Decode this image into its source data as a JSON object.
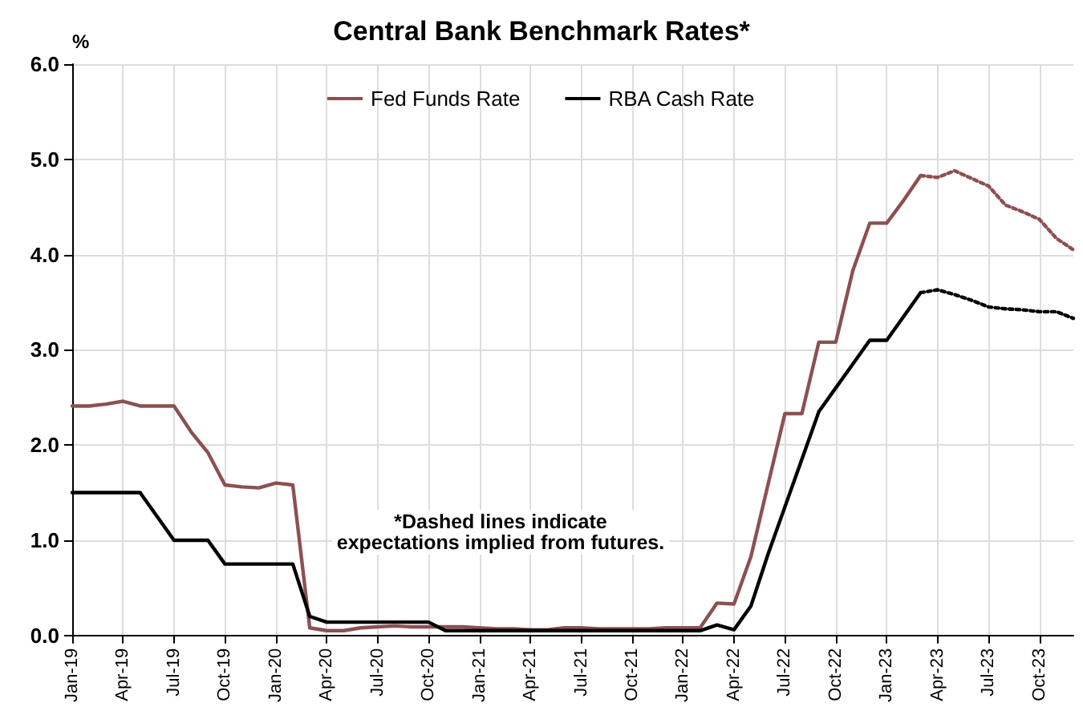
{
  "chart_data": {
    "type": "line",
    "title": "Central Bank Benchmark Rates*",
    "ylabel": "%",
    "categories": [
      "Jan-19",
      null,
      null,
      "Apr-19",
      null,
      null,
      "Jul-19",
      null,
      null,
      "Oct-19",
      null,
      null,
      "Jan-20",
      null,
      null,
      "Apr-20",
      null,
      null,
      "Jul-20",
      null,
      null,
      "Oct-20",
      null,
      null,
      "Jan-21",
      null,
      null,
      "Apr-21",
      null,
      null,
      "Jul-21",
      null,
      null,
      "Oct-21",
      null,
      null,
      "Jan-22",
      null,
      null,
      "Apr-22",
      null,
      null,
      "Jul-22",
      null,
      null,
      "Oct-22",
      null,
      null,
      "Jan-23",
      null,
      null,
      "Apr-23",
      null,
      null,
      "Jul-23",
      null,
      null,
      "Oct-23",
      null,
      null
    ],
    "series": [
      {
        "name": "Fed Funds Rate",
        "color": "#8c5050",
        "line_style": "solid",
        "values": [
          2.41,
          2.41,
          2.43,
          2.46,
          2.41,
          2.41,
          2.41,
          2.14,
          1.92,
          1.58,
          1.56,
          1.55,
          1.6,
          1.58,
          0.08,
          0.05,
          0.05,
          0.08,
          0.09,
          0.1,
          0.09,
          0.09,
          0.09,
          0.09,
          0.08,
          0.07,
          0.07,
          0.06,
          0.06,
          0.08,
          0.08,
          0.07,
          0.07,
          0.07,
          0.07,
          0.08,
          0.08,
          0.08,
          0.34,
          0.33,
          0.83,
          1.58,
          2.33,
          2.33,
          3.08,
          3.08,
          3.83,
          4.33,
          4.33,
          4.57,
          4.83,
          null,
          null,
          null,
          null,
          null,
          null,
          null,
          null,
          null
        ]
      },
      {
        "name": "RBA Cash Rate",
        "color": "#000000",
        "line_style": "solid",
        "values": [
          1.5,
          1.5,
          1.5,
          1.5,
          1.5,
          1.25,
          1.0,
          1.0,
          1.0,
          0.75,
          0.75,
          0.75,
          0.75,
          0.75,
          0.2,
          0.14,
          0.14,
          0.14,
          0.14,
          0.14,
          0.14,
          0.14,
          0.05,
          0.05,
          0.05,
          0.05,
          0.05,
          0.05,
          0.05,
          0.05,
          0.05,
          0.05,
          0.05,
          0.05,
          0.05,
          0.05,
          0.05,
          0.05,
          0.11,
          0.06,
          0.31,
          0.85,
          1.35,
          1.85,
          2.35,
          2.6,
          2.85,
          3.1,
          3.1,
          3.35,
          3.6,
          null,
          null,
          null,
          null,
          null,
          null,
          null,
          null,
          null
        ]
      },
      {
        "color": "#8c5050",
        "line_style": "dotted",
        "values": [
          null,
          null,
          null,
          null,
          null,
          null,
          null,
          null,
          null,
          null,
          null,
          null,
          null,
          null,
          null,
          null,
          null,
          null,
          null,
          null,
          null,
          null,
          null,
          null,
          null,
          null,
          null,
          null,
          null,
          null,
          null,
          null,
          null,
          null,
          null,
          null,
          null,
          null,
          null,
          null,
          null,
          null,
          null,
          null,
          null,
          null,
          null,
          null,
          null,
          null,
          4.83,
          4.81,
          4.88,
          4.8,
          4.72,
          4.52,
          4.45,
          4.37,
          4.17,
          4.05
        ]
      },
      {
        "color": "#000000",
        "line_style": "dotted",
        "values": [
          null,
          null,
          null,
          null,
          null,
          null,
          null,
          null,
          null,
          null,
          null,
          null,
          null,
          null,
          null,
          null,
          null,
          null,
          null,
          null,
          null,
          null,
          null,
          null,
          null,
          null,
          null,
          null,
          null,
          null,
          null,
          null,
          null,
          null,
          null,
          null,
          null,
          null,
          null,
          null,
          null,
          null,
          null,
          null,
          null,
          null,
          null,
          null,
          null,
          null,
          3.6,
          3.63,
          3.58,
          3.52,
          3.45,
          3.43,
          3.42,
          3.4,
          3.4,
          3.33
        ]
      }
    ],
    "ylim": [
      0,
      6
    ],
    "yticks": [
      {
        "value": 0,
        "label": "0.0"
      },
      {
        "value": 1,
        "label": "1.0"
      },
      {
        "value": 2,
        "label": "2.0"
      },
      {
        "value": 3,
        "label": "3.0"
      },
      {
        "value": 4,
        "label": "4.0"
      },
      {
        "value": 5,
        "label": "5.0"
      },
      {
        "value": 6,
        "label": "6.0"
      }
    ],
    "grid": true,
    "legend": "top",
    "marker": "none",
    "annotations": [
      "*Dashed lines indicate\nexpectations implied from futures."
    ]
  }
}
